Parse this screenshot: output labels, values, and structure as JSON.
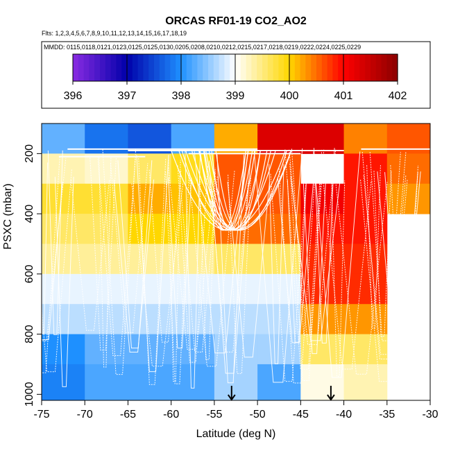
{
  "chart_data": {
    "type": "heatmap",
    "title": "ORCAS RF01-19 CO2_AO2",
    "flights_line": "Flts: 1,2,3,4,5,6,7,8,9,10,11,12,13,14,15,16,17,18,19",
    "mmdd_line": "MMDD: 0115,0118,0121,0123,0125,0125,0130,0205,0208,0210,0212,0215,0217,0218,0219,0222,0224,0225,0229",
    "xlabel": "Latitude (deg N)",
    "ylabel": "PSXC (mbar)",
    "xlim": [
      -75,
      -30
    ],
    "ylim": [
      1020,
      100
    ],
    "x_ticks": [
      -75,
      -70,
      -65,
      -60,
      -55,
      -50,
      -45,
      -40,
      -35,
      -30
    ],
    "y_ticks": [
      200,
      400,
      600,
      800,
      1000
    ],
    "colorbar": {
      "min": 396,
      "max": 402,
      "ticks": [
        396,
        397,
        398,
        399,
        400,
        401,
        402
      ],
      "stops": [
        "#8a2be2",
        "#0000aa",
        "#1e90ff",
        "#ffffff",
        "#ffd700",
        "#ff0000",
        "#8b0000"
      ]
    },
    "lat_bins": [
      -75,
      -70,
      -65,
      -60,
      -55,
      -50,
      -45,
      -40,
      -35,
      -30
    ],
    "pressure_bins": [
      100,
      200,
      300,
      400,
      500,
      600,
      700,
      800,
      900,
      1020
    ],
    "cells": [
      [
        398.3,
        397.8,
        397.6,
        398.2,
        400.2,
        401.3,
        401.3,
        400.4,
        400.6
      ],
      [
        399.3,
        399.2,
        399.6,
        399.9,
        400.6,
        400.6,
        null,
        400.9,
        400.5
      ],
      [
        399.8,
        399.8,
        400.2,
        400.1,
        400.6,
        400.6,
        401.1,
        400.9,
        400.3
      ],
      [
        399.6,
        399.6,
        400.0,
        400.0,
        400.5,
        400.5,
        400.9,
        400.9,
        null
      ],
      [
        399.4,
        399.4,
        399.4,
        399.4,
        399.6,
        399.6,
        400.8,
        400.8,
        null
      ],
      [
        398.9,
        398.9,
        398.9,
        398.9,
        398.9,
        398.9,
        400.8,
        400.8,
        null
      ],
      [
        398.7,
        398.7,
        398.7,
        398.7,
        398.7,
        398.7,
        400.3,
        400.3,
        null
      ],
      [
        398.0,
        398.3,
        398.3,
        398.3,
        398.6,
        398.6,
        399.6,
        399.6,
        null
      ],
      [
        397.9,
        398.2,
        398.2,
        398.2,
        398.6,
        398.2,
        399.1,
        399.3,
        null
      ]
    ],
    "markers_lat": [
      -53,
      -41.5
    ]
  }
}
